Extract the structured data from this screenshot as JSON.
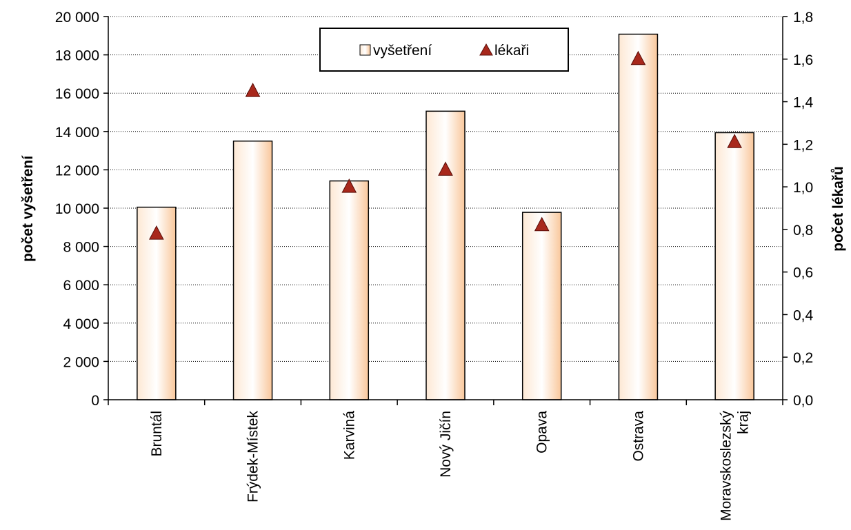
{
  "chart_data": {
    "type": "bar",
    "categories": [
      "Bruntál",
      "Frýdek-Místek",
      "Karviná",
      "Nový Jičín",
      "Opava",
      "Ostrava",
      "Moravskoslezský kraj"
    ],
    "category_lines": [
      [
        "Bruntál"
      ],
      [
        "Frýdek-Místek"
      ],
      [
        "Karviná"
      ],
      [
        "Nový Jičín"
      ],
      [
        "Opava"
      ],
      [
        "Ostrava"
      ],
      [
        "Moravskoslezský",
        "kraj"
      ]
    ],
    "series": [
      {
        "name": "vyšetření",
        "type": "bar",
        "axis": "left",
        "values": [
          10050,
          13500,
          11420,
          15060,
          9780,
          19080,
          13940
        ],
        "color": "#fbd2ad"
      },
      {
        "name": "lékaři",
        "type": "scatter",
        "marker": "triangle",
        "axis": "right",
        "values": [
          0.78,
          1.45,
          1.0,
          1.08,
          0.82,
          1.6,
          1.21
        ],
        "color": "#a8281c"
      }
    ],
    "ylabel": "počet vyšetření",
    "y2label": "počet lékařů",
    "ylim": [
      0,
      20000
    ],
    "y2lim": [
      0,
      1.8
    ],
    "yticks": [
      "0",
      "2 000",
      "4 000",
      "6 000",
      "8 000",
      "10 000",
      "12 000",
      "14 000",
      "16 000",
      "18 000",
      "20 000"
    ],
    "y2ticks": [
      "0,0",
      "0,2",
      "0,4",
      "0,6",
      "0,8",
      "1,0",
      "1,2",
      "1,4",
      "1,6",
      "1,8"
    ],
    "grid": true,
    "legend": "top-center"
  }
}
